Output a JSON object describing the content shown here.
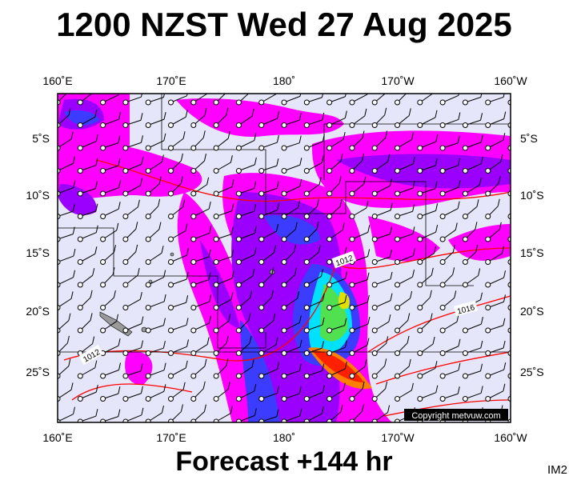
{
  "header": {
    "title": "1200 NZST Wed 27 Aug 2025"
  },
  "map": {
    "longitude_labels": [
      "160˚E",
      "170˚E",
      "180˚",
      "170˚W",
      "160˚W"
    ],
    "latitude_labels": [
      "5˚S",
      "10˚S",
      "15˚S",
      "20˚S",
      "25˚S"
    ],
    "isobar_labels": [
      "1012",
      "1016",
      "1012"
    ],
    "copyright": "Copyright metvuw.com"
  },
  "footer": {
    "forecast": "Forecast +144 hr",
    "code": "IM2"
  }
}
